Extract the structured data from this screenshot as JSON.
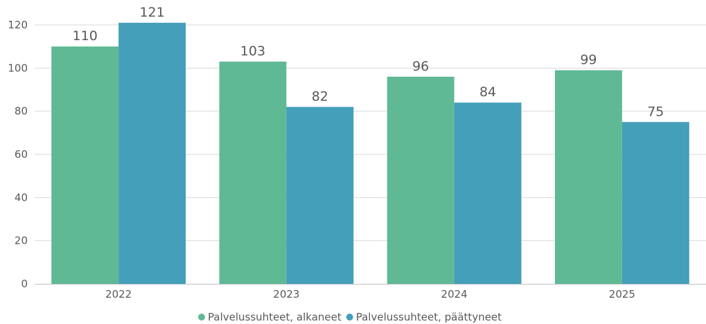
{
  "chart_data": {
    "type": "bar",
    "title": "",
    "xlabel": "",
    "ylabel": "",
    "categories": [
      "2022",
      "2023",
      "2024",
      "2025"
    ],
    "series": [
      {
        "name": "Palvelussuhteet, alkaneet",
        "color": "#5fb995",
        "values": [
          110,
          103,
          96,
          99
        ]
      },
      {
        "name": "Palvelussuhteet, päättyneet",
        "color": "#439fba",
        "values": [
          121,
          82,
          84,
          75
        ]
      }
    ],
    "ylim": [
      0,
      120
    ],
    "yticks": [
      0,
      20,
      40,
      60,
      80,
      100,
      120
    ],
    "grid": true,
    "data_labels": true,
    "legend_position": "bottom"
  }
}
